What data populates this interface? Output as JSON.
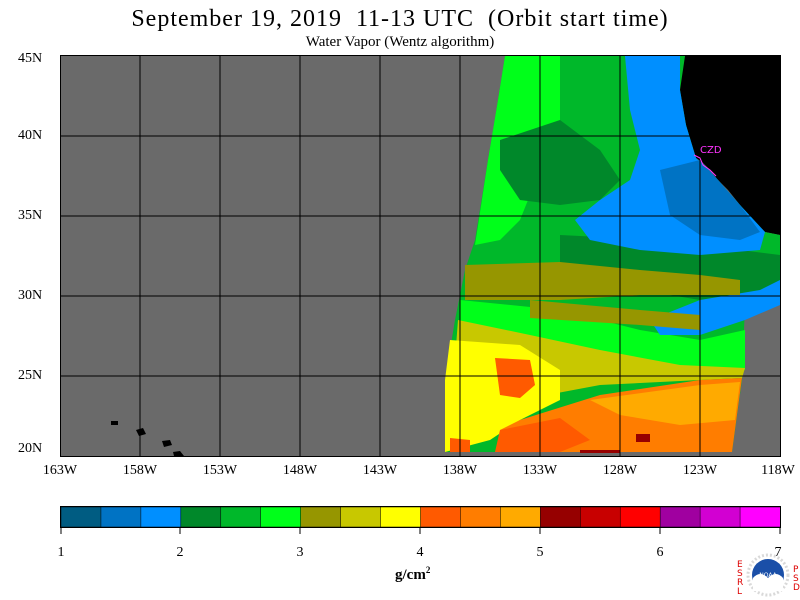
{
  "title": "September 19, 2019  11-13 UTC  (Orbit start time)",
  "subtitle": "Water Vapor (Wentz algorithm)",
  "map": {
    "lat_labels": [
      "45N",
      "40N",
      "35N",
      "30N",
      "25N",
      "20N"
    ],
    "lon_labels": [
      "163W",
      "158W",
      "153W",
      "148W",
      "143W",
      "138W",
      "133W",
      "128W",
      "123W",
      "118W"
    ],
    "station_label": "CZD",
    "colors": {
      "no_data": "#6a6a6a",
      "land": "#000000",
      "grid": "#000000",
      "station": "#ff33ff"
    }
  },
  "colorbar": {
    "ticks": [
      "1",
      "2",
      "3",
      "4",
      "5",
      "6",
      "7"
    ],
    "unit": "g/cm",
    "unit_exponent": "2",
    "range": [
      1,
      7
    ],
    "colors": [
      "#005c82",
      "#0073c4",
      "#008fff",
      "#00882a",
      "#00b82a",
      "#00ff1a",
      "#969600",
      "#c8c800",
      "#ffff00",
      "#ff5a00",
      "#ff7d00",
      "#ffaa00",
      "#960000",
      "#c80000",
      "#ff0000",
      "#a000a0",
      "#d200d2",
      "#ff00ff"
    ]
  },
  "logo": {
    "left_letters": [
      "E",
      "S",
      "R",
      "L"
    ],
    "right_letters": [
      "P",
      "S",
      "D"
    ],
    "center": "NOAA"
  }
}
